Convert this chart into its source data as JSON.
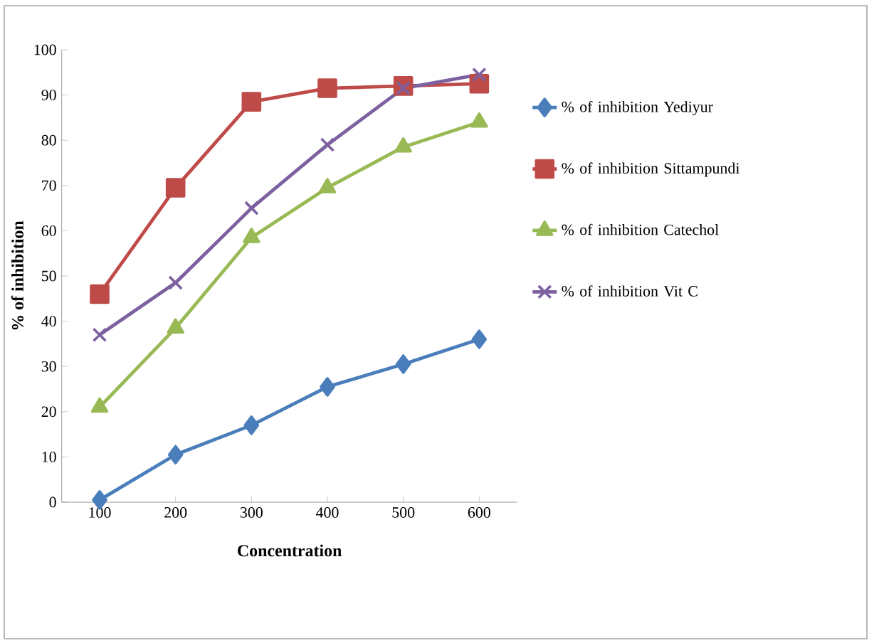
{
  "chart_data": {
    "type": "line",
    "xlabel": "Concentration",
    "ylabel": "% of inhibition",
    "categories": [
      "100",
      "200",
      "300",
      "400",
      "500",
      "600"
    ],
    "series": [
      {
        "name": "% of inhibition Yediyur",
        "color": "#4a7ebb",
        "marker": "diamond",
        "values": [
          0.5,
          10.5,
          17,
          25.5,
          30.5,
          36
        ]
      },
      {
        "name": "% of inhibition Sittampundi",
        "color": "#be4b48",
        "marker": "square",
        "values": [
          46,
          69.5,
          88.5,
          91.5,
          92,
          92.5
        ]
      },
      {
        "name": "% of inhibition Catechol",
        "color": "#98b954",
        "marker": "triangle",
        "values": [
          21,
          38.5,
          58.5,
          69.5,
          78.5,
          84
        ]
      },
      {
        "name": "% of inhibition Vit C",
        "color": "#7d60a0",
        "marker": "cross",
        "values": [
          37,
          48.5,
          65,
          79,
          91.5,
          94.5
        ]
      }
    ],
    "ylim": [
      0,
      100
    ],
    "yticks": [
      0,
      10,
      20,
      30,
      40,
      50,
      60,
      70,
      80,
      90,
      100
    ],
    "grid": false,
    "legend": "right"
  }
}
